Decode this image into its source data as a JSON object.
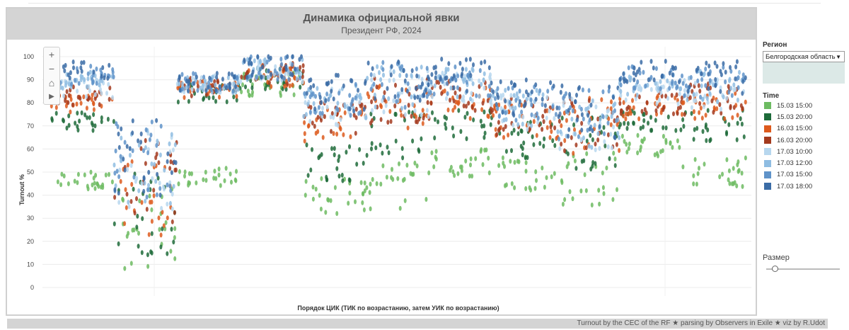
{
  "chart_data": {
    "type": "scatter",
    "title": "Динамика официальной явки",
    "subtitle": "Президент РФ, 2024",
    "xlabel": "Порядок ЦИК (ТИК по возрастанию, затем УИК по возрастанию)",
    "ylabel": "Turnout %",
    "ylim": [
      0,
      105
    ],
    "yticks": [
      "0",
      "10",
      "20",
      "30",
      "40",
      "50",
      "60",
      "70",
      "80",
      "90",
      "100"
    ],
    "x_ticks_shown": false,
    "grid": true,
    "legend_position": "right",
    "series": [
      {
        "name": "15.03 15:00",
        "color": "#6dbb62"
      },
      {
        "name": "15.03 20:00",
        "color": "#1e6b3a"
      },
      {
        "name": "16.03 15:00",
        "color": "#dd5a1d"
      },
      {
        "name": "16.03 20:00",
        "color": "#a33a1e"
      },
      {
        "name": "17.03 10:00",
        "color": "#b7d7ee"
      },
      {
        "name": "17.03 12:00",
        "color": "#8fbde2"
      },
      {
        "name": "17.03 15:00",
        "color": "#5f93c9"
      },
      {
        "name": "17.03 18:00",
        "color": "#3b6ca6"
      }
    ],
    "segments": [
      [
        [
          46,
          72,
          80,
          83,
          86,
          90,
          92,
          94
        ],
        4
      ],
      [
        [
          26,
          32,
          40,
          46,
          50,
          54,
          56,
          58
        ],
        18
      ],
      [
        [
          48,
          84,
          86,
          87,
          88,
          88,
          89,
          89
        ],
        4
      ],
      [
        [
          88,
          90,
          92,
          93,
          94,
          95,
          95,
          96
        ],
        5
      ],
      [
        [
          40,
          54,
          70,
          74,
          78,
          80,
          82,
          84
        ],
        8
      ],
      [
        [
          44,
          66,
          78,
          81,
          84,
          86,
          88,
          90
        ],
        10
      ],
      [
        [
          54,
          70,
          80,
          83,
          86,
          88,
          90,
          92
        ],
        7
      ],
      [
        [
          50,
          64,
          72,
          74,
          76,
          78,
          80,
          82
        ],
        8
      ],
      [
        [
          47,
          62,
          70,
          70,
          71,
          72,
          74,
          76
        ],
        12
      ],
      [
        [
          62,
          72,
          78,
          80,
          84,
          88,
          91,
          93
        ],
        5
      ],
      [
        [
          50,
          70,
          80,
          82,
          84,
          87,
          89,
          91
        ],
        7
      ]
    ]
  },
  "controls": {
    "region_label": "Регион",
    "region_value": "Белгородская область",
    "time_label": "Time",
    "size_label": "Размер",
    "size_value": 0.12
  },
  "credit": "Turnout by the CEC of the RF ★ parsing by Observers in Exile ★ viz by R.Udot",
  "icons": {
    "zoom_in": "plus-icon",
    "zoom_out": "minus-icon",
    "home": "home-icon",
    "play": "play-icon"
  }
}
